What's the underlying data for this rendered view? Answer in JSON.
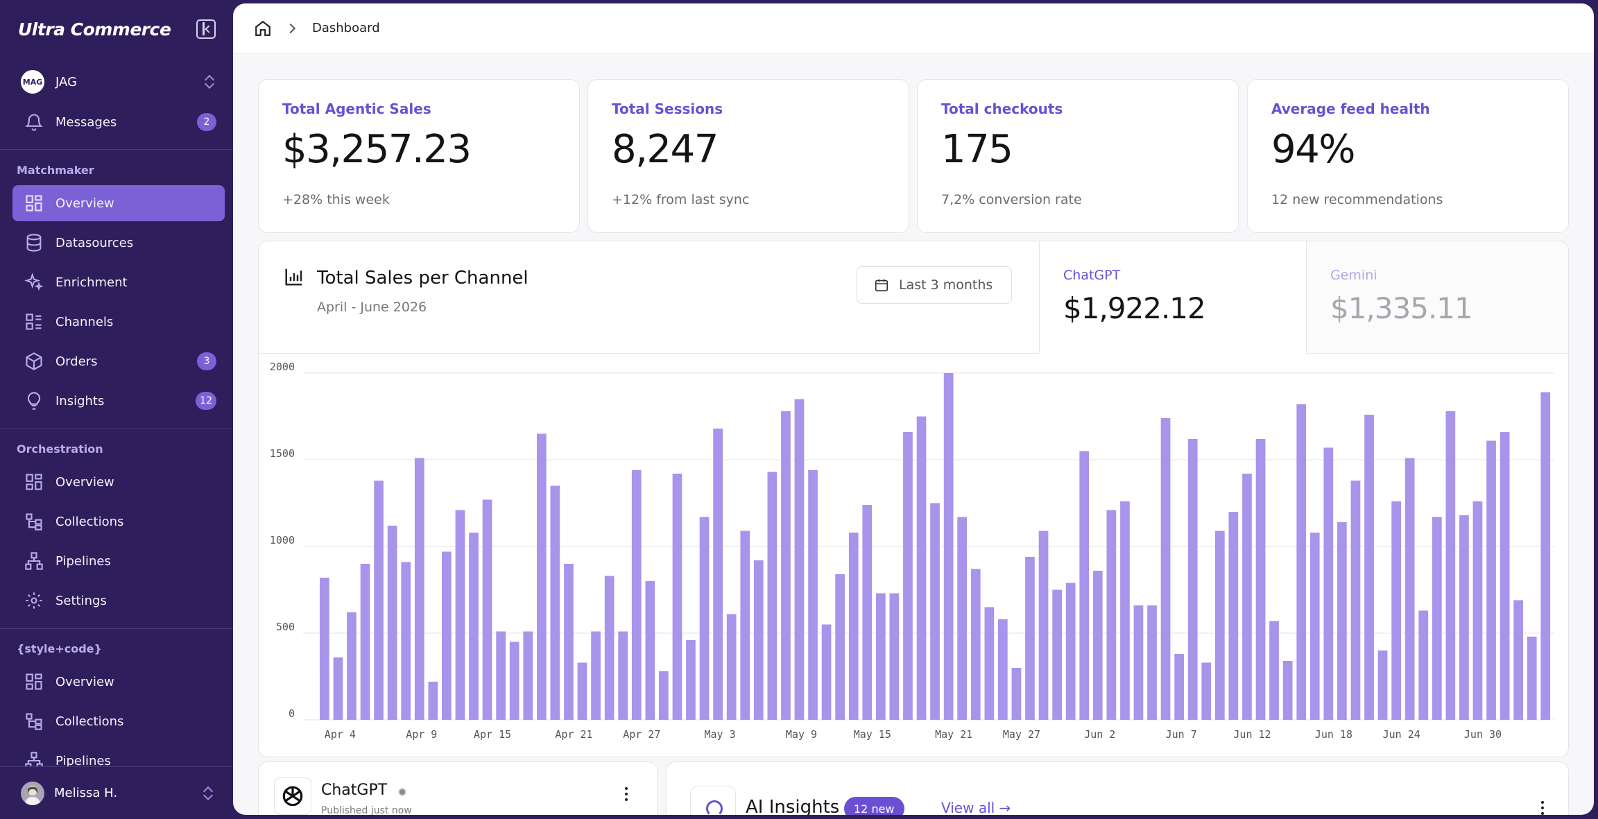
{
  "brand": "Ultra Commerce",
  "org": {
    "avatar_text": "MAG",
    "name": "JAG"
  },
  "messages": {
    "label": "Messages",
    "badge": "2"
  },
  "sections": {
    "matchmaker": "Matchmaker",
    "orchestration": "Orchestration",
    "stylecode": "{style+code}"
  },
  "nav": {
    "matchmaker": [
      {
        "label": "Overview",
        "icon": "grid-icon"
      },
      {
        "label": "Datasources",
        "icon": "database-icon"
      },
      {
        "label": "Enrichment",
        "icon": "sparkle-icon"
      },
      {
        "label": "Channels",
        "icon": "list-icon"
      },
      {
        "label": "Orders",
        "icon": "box-icon",
        "badge": "3"
      },
      {
        "label": "Insights",
        "icon": "lightbulb-icon",
        "badge": "12"
      }
    ],
    "orchestration": [
      {
        "label": "Overview",
        "icon": "grid-icon"
      },
      {
        "label": "Collections",
        "icon": "tree-icon"
      },
      {
        "label": "Pipelines",
        "icon": "hierarchy-icon"
      },
      {
        "label": "Settings",
        "icon": "gear-icon"
      }
    ],
    "stylecode": [
      {
        "label": "Overview",
        "icon": "grid-icon"
      },
      {
        "label": "Collections",
        "icon": "tree-icon"
      },
      {
        "label": "Pipelines",
        "icon": "hierarchy-icon"
      }
    ]
  },
  "user": {
    "name": "Melissa H."
  },
  "breadcrumb": {
    "current": "Dashboard"
  },
  "kpis": [
    {
      "title": "Total Agentic Sales",
      "value": "$3,257.23",
      "sub": "+28% this week"
    },
    {
      "title": "Total Sessions",
      "value": "8,247",
      "sub": "+12% from last sync"
    },
    {
      "title": "Total checkouts",
      "value": "175",
      "sub": "7,2% conversion rate"
    },
    {
      "title": "Average feed health",
      "value": "94%",
      "sub": "12 new recommendations"
    }
  ],
  "chart_panel": {
    "title": "Total Sales per Channel",
    "subtitle": "April - June 2026",
    "range": "Last 3 months",
    "channels": [
      {
        "name": "ChatGPT",
        "value": "$1,922.12",
        "active": true
      },
      {
        "name": "Gemini",
        "value": "$1,335.11",
        "active": false
      }
    ]
  },
  "chart_data": {
    "type": "bar",
    "title": "Total Sales per Channel",
    "series_name": "ChatGPT",
    "ylim": [
      0,
      2000
    ],
    "yticks": [
      0,
      500,
      1000,
      1500,
      2000
    ],
    "grid": true,
    "x_tick_labels": [
      "Apr 4",
      "Apr 9",
      "Apr 15",
      "Apr 21",
      "Apr 27",
      "May 3",
      "May 9",
      "May 15",
      "May 21",
      "May 27",
      "Jun 2",
      "Jun 7",
      "Jun 12",
      "Jun 18",
      "Jun 24",
      "Jun 30"
    ],
    "values": [
      820,
      360,
      620,
      900,
      1380,
      1120,
      910,
      1510,
      220,
      970,
      1210,
      1080,
      1270,
      510,
      450,
      510,
      1650,
      1350,
      900,
      330,
      510,
      830,
      510,
      1440,
      800,
      280,
      1420,
      460,
      1170,
      1680,
      610,
      1090,
      920,
      1430,
      1780,
      1850,
      1440,
      550,
      840,
      1080,
      1240,
      730,
      730,
      1660,
      1750,
      1250,
      2000,
      1170,
      870,
      650,
      580,
      300,
      940,
      1090,
      750,
      790,
      1550,
      860,
      1210,
      1260,
      660,
      660,
      1740,
      380,
      1620,
      330,
      1090,
      1200,
      1420,
      1620,
      570,
      340,
      1820,
      1080,
      1570,
      1140,
      1380,
      1760,
      400,
      1260,
      1510,
      630,
      1170,
      1780,
      1180,
      1260,
      1610,
      1660,
      690,
      480,
      1890
    ]
  },
  "bottom": {
    "chatgpt": {
      "name": "ChatGPT",
      "status": "Published just now"
    },
    "insights": {
      "title": "AI Insights",
      "badge": "12 new",
      "link": "View all"
    }
  },
  "colors": {
    "sidebar": "#2e1f5c",
    "accent": "#6a4fd3",
    "bar": "#a894ea"
  }
}
